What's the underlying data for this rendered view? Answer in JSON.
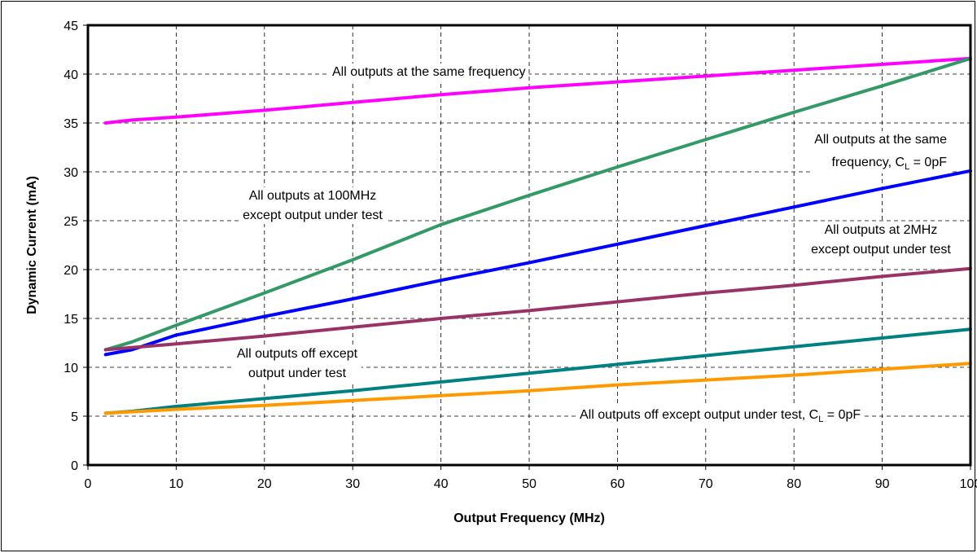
{
  "chart_data": {
    "type": "line",
    "title": "",
    "xlabel": "Output Frequency (MHz)",
    "ylabel": "Dynamic Current (mA)",
    "xlim": [
      0,
      100
    ],
    "ylim": [
      0,
      45
    ],
    "xticks": [
      "0",
      "10",
      "20",
      "30",
      "40",
      "50",
      "60",
      "70",
      "80",
      "90",
      "100"
    ],
    "yticks": [
      "0",
      "5",
      "10",
      "15",
      "20",
      "25",
      "30",
      "35",
      "40",
      "45"
    ],
    "grid": true,
    "legend": "none",
    "series": [
      {
        "color": "#ff00ff",
        "x": [
          2,
          5,
          10,
          20,
          30,
          40,
          50,
          60,
          70,
          80,
          90,
          100
        ],
        "y": [
          35.0,
          35.3,
          35.6,
          36.3,
          37.1,
          37.9,
          38.6,
          39.2,
          39.8,
          40.4,
          41.0,
          41.6
        ]
      },
      {
        "color": "#339966",
        "x": [
          2,
          5,
          10,
          20,
          30,
          40,
          50,
          60,
          70,
          80,
          90,
          100
        ],
        "y": [
          11.8,
          12.6,
          14.3,
          17.6,
          21.0,
          24.6,
          27.6,
          30.5,
          33.3,
          36.1,
          38.8,
          41.6
        ]
      },
      {
        "color": "#0000ff",
        "x": [
          2,
          5,
          10,
          20,
          30,
          40,
          50,
          60,
          70,
          80,
          90,
          100
        ],
        "y": [
          11.3,
          11.8,
          13.3,
          15.2,
          17.0,
          18.9,
          20.7,
          22.6,
          24.5,
          26.4,
          28.3,
          30.1
        ]
      },
      {
        "color": "#993366",
        "x": [
          2,
          10,
          20,
          30,
          40,
          50,
          60,
          70,
          80,
          90,
          100
        ],
        "y": [
          11.8,
          12.4,
          13.2,
          14.1,
          15.0,
          15.8,
          16.7,
          17.6,
          18.4,
          19.3,
          20.1
        ]
      },
      {
        "color": "#008080",
        "x": [
          2,
          5,
          10,
          20,
          30,
          40,
          50,
          60,
          70,
          80,
          90,
          100
        ],
        "y": [
          5.3,
          5.5,
          6.0,
          6.8,
          7.6,
          8.5,
          9.4,
          10.3,
          11.2,
          12.1,
          13.0,
          13.9
        ]
      },
      {
        "color": "#ff9900",
        "x": [
          2,
          10,
          20,
          30,
          40,
          50,
          60,
          70,
          80,
          90,
          100
        ],
        "y": [
          5.3,
          5.7,
          6.1,
          6.6,
          7.1,
          7.6,
          8.2,
          8.7,
          9.2,
          9.8,
          10.4
        ]
      }
    ],
    "annotations": [
      {
        "lines": [
          {
            "main": "All outputs at the same frequency"
          }
        ]
      },
      {
        "lines": [
          {
            "main": "All outputs at the same"
          },
          {
            "main": "frequency, C",
            "sub": "L",
            "tail": " = 0pF"
          }
        ]
      },
      {
        "lines": [
          {
            "main": "All outputs at 100MHz"
          },
          {
            "main": "except output under test"
          }
        ]
      },
      {
        "lines": [
          {
            "main": "All outputs at 2MHz"
          },
          {
            "main": "except output under test"
          }
        ]
      },
      {
        "lines": [
          {
            "main": "All outputs off except"
          },
          {
            "main": "output under test"
          }
        ]
      },
      {
        "lines": [
          {
            "main": "All outputs off except output under test, C",
            "sub": "L",
            "tail": " = 0pF"
          }
        ]
      }
    ]
  }
}
